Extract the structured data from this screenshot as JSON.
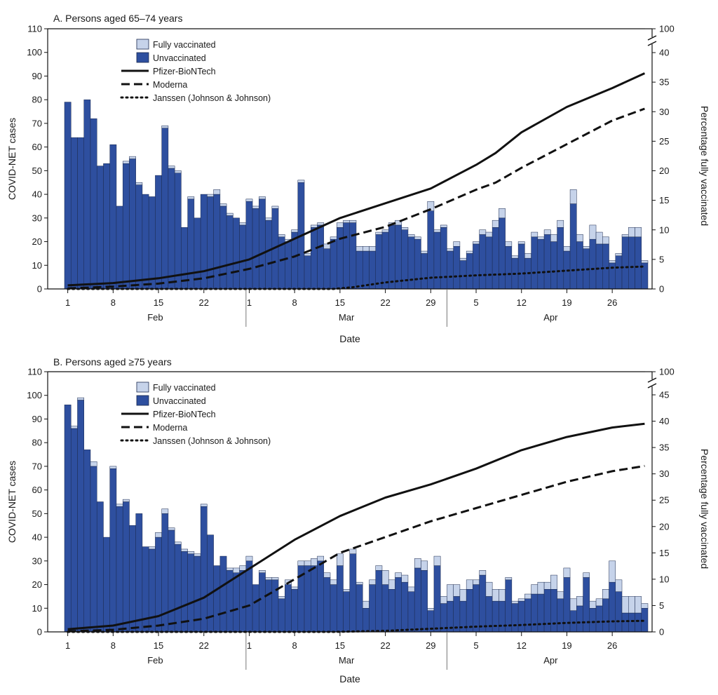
{
  "chart_data": [
    {
      "type": "bar",
      "panel_title": "A. Persons aged 65–74 years",
      "xlabel": "Date",
      "ylabel": "COVID-NET cases",
      "y2label": "Percentage fully vaccinated",
      "ylim": [
        0,
        110
      ],
      "yticks": [
        "0",
        "10",
        "20",
        "30",
        "40",
        "50",
        "60",
        "70",
        "80",
        "90",
        "100",
        "110"
      ],
      "y2ticks": [
        "0",
        "5",
        "10",
        "15",
        "20",
        "25",
        "30",
        "35",
        "40"
      ],
      "y2break_label": "100",
      "y2lim": [
        0,
        40
      ],
      "xticks": [
        {
          "day": 0,
          "label": "1"
        },
        {
          "day": 7,
          "label": "8"
        },
        {
          "day": 14,
          "label": "15"
        },
        {
          "day": 21,
          "label": "22"
        },
        {
          "day": 28,
          "label": "1"
        },
        {
          "day": 35,
          "label": "8"
        },
        {
          "day": 42,
          "label": "15"
        },
        {
          "day": 49,
          "label": "22"
        },
        {
          "day": 56,
          "label": "29"
        },
        {
          "day": 63,
          "label": "5"
        },
        {
          "day": 70,
          "label": "12"
        },
        {
          "day": 77,
          "label": "19"
        },
        {
          "day": 84,
          "label": "26"
        }
      ],
      "months": [
        {
          "label": "Feb",
          "center_day": 13.5
        },
        {
          "label": "Mar",
          "center_day": 43
        },
        {
          "label": "Apr",
          "center_day": 74.5
        }
      ],
      "month_dividers": [
        27.5,
        58.5
      ],
      "legend": {
        "fully_vaccinated": "Fully vaccinated",
        "unvaccinated": "Unvaccinated",
        "pfizer": "Pfizer-BioNTech",
        "moderna": "Moderna",
        "janssen": "Janssen (Johnson & Johnson)"
      },
      "colors": {
        "unvaccinated": "#2e4f9f",
        "fully_vaccinated": "#c6d3ea",
        "line": "#111111"
      },
      "unvaccinated": [
        79,
        64,
        64,
        80,
        72,
        52,
        53,
        61,
        35,
        53,
        55,
        44,
        40,
        39,
        48,
        68,
        51,
        49,
        26,
        38,
        30,
        40,
        39,
        40,
        35,
        31,
        30,
        27,
        37,
        34,
        38,
        29,
        34,
        22,
        20,
        24,
        45,
        14,
        26,
        27,
        17,
        21,
        26,
        28,
        28,
        16,
        16,
        16,
        23,
        24,
        27,
        27,
        25,
        22,
        21,
        15,
        33,
        24,
        26,
        16,
        18,
        12,
        15,
        19,
        23,
        22,
        26,
        30,
        18,
        13,
        19,
        13,
        22,
        21,
        23,
        20,
        26,
        16,
        36,
        20,
        17,
        21,
        19,
        19,
        11,
        14,
        22,
        22,
        22,
        11
      ],
      "fully_vaccinated": [
        0,
        0,
        0,
        0,
        0,
        0,
        0,
        0,
        0,
        1,
        1,
        1,
        0,
        0,
        0,
        1,
        1,
        1,
        0,
        1,
        0,
        0,
        1,
        2,
        1,
        1,
        0,
        1,
        1,
        1,
        1,
        1,
        1,
        1,
        1,
        1,
        1,
        1,
        1,
        1,
        2,
        1,
        2,
        1,
        1,
        2,
        2,
        2,
        1,
        1,
        1,
        2,
        1,
        1,
        1,
        1,
        4,
        1,
        1,
        1,
        2,
        1,
        1,
        1,
        2,
        2,
        3,
        4,
        2,
        1,
        1,
        2,
        2,
        1,
        2,
        3,
        3,
        2,
        6,
        3,
        1,
        6,
        5,
        3,
        1,
        1,
        1,
        4,
        4,
        1
      ],
      "pfizer_pct": [
        [
          0,
          0.6
        ],
        [
          7,
          1.0
        ],
        [
          14,
          1.8
        ],
        [
          21,
          3.0
        ],
        [
          28,
          5.0
        ],
        [
          35,
          8.5
        ],
        [
          42,
          12.0
        ],
        [
          49,
          14.5
        ],
        [
          56,
          17.0
        ],
        [
          63,
          21.0
        ],
        [
          66,
          23.0
        ],
        [
          70,
          26.5
        ],
        [
          77,
          30.8
        ],
        [
          84,
          34.0
        ],
        [
          89,
          36.5
        ]
      ],
      "moderna_pct": [
        [
          0,
          0.1
        ],
        [
          7,
          0.4
        ],
        [
          14,
          0.9
        ],
        [
          21,
          1.8
        ],
        [
          28,
          3.4
        ],
        [
          35,
          5.5
        ],
        [
          42,
          8.5
        ],
        [
          49,
          10.5
        ],
        [
          56,
          13.5
        ],
        [
          63,
          16.8
        ],
        [
          66,
          18.0
        ],
        [
          70,
          20.5
        ],
        [
          77,
          24.5
        ],
        [
          84,
          28.5
        ],
        [
          89,
          30.5
        ]
      ],
      "janssen_pct": [
        [
          0,
          0
        ],
        [
          41,
          0
        ],
        [
          44,
          0.3
        ],
        [
          49,
          1.1
        ],
        [
          56,
          1.9
        ],
        [
          63,
          2.3
        ],
        [
          70,
          2.6
        ],
        [
          77,
          3.1
        ],
        [
          84,
          3.6
        ],
        [
          89,
          3.8
        ]
      ]
    },
    {
      "type": "bar",
      "panel_title": "B. Persons aged ≥75 years",
      "xlabel": "Date",
      "ylabel": "COVID-NET cases",
      "y2label": "Percentage fully vaccinated",
      "ylim": [
        0,
        110
      ],
      "yticks": [
        "0",
        "10",
        "20",
        "30",
        "40",
        "50",
        "60",
        "70",
        "80",
        "90",
        "100",
        "110"
      ],
      "y2ticks": [
        "0",
        "5",
        "10",
        "15",
        "20",
        "25",
        "30",
        "35",
        "40",
        "45"
      ],
      "y2break_label": "100",
      "y2lim": [
        0,
        45
      ],
      "xticks": [
        {
          "day": 0,
          "label": "1"
        },
        {
          "day": 7,
          "label": "8"
        },
        {
          "day": 14,
          "label": "15"
        },
        {
          "day": 21,
          "label": "22"
        },
        {
          "day": 28,
          "label": "1"
        },
        {
          "day": 35,
          "label": "8"
        },
        {
          "day": 42,
          "label": "15"
        },
        {
          "day": 49,
          "label": "22"
        },
        {
          "day": 56,
          "label": "29"
        },
        {
          "day": 63,
          "label": "5"
        },
        {
          "day": 70,
          "label": "12"
        },
        {
          "day": 77,
          "label": "19"
        },
        {
          "day": 84,
          "label": "26"
        }
      ],
      "months": [
        {
          "label": "Feb",
          "center_day": 13.5
        },
        {
          "label": "Mar",
          "center_day": 43
        },
        {
          "label": "Apr",
          "center_day": 74.5
        }
      ],
      "month_dividers": [
        27.5,
        58.5
      ],
      "legend": {
        "fully_vaccinated": "Fully vaccinated",
        "unvaccinated": "Unvaccinated",
        "pfizer": "Pfizer-BioNTech",
        "moderna": "Moderna",
        "janssen": "Janssen (Johnson & Johnson)"
      },
      "colors": {
        "unvaccinated": "#2e4f9f",
        "fully_vaccinated": "#c6d3ea",
        "line": "#111111"
      },
      "unvaccinated": [
        96,
        86,
        98,
        77,
        70,
        55,
        40,
        69,
        53,
        55,
        45,
        50,
        36,
        35,
        40,
        50,
        43,
        37,
        34,
        33,
        32,
        53,
        41,
        28,
        32,
        26,
        25,
        26,
        30,
        20,
        25,
        22,
        22,
        14,
        20,
        18,
        28,
        28,
        28,
        30,
        23,
        20,
        28,
        17,
        33,
        20,
        10,
        20,
        26,
        20,
        18,
        23,
        21,
        17,
        27,
        26,
        9,
        28,
        12,
        13,
        15,
        13,
        18,
        20,
        24,
        15,
        13,
        13,
        22,
        12,
        13,
        14,
        16,
        16,
        18,
        18,
        14,
        23,
        9,
        11,
        23,
        10,
        11,
        14,
        21,
        17,
        8,
        8,
        8,
        10
      ],
      "fully_vaccinated": [
        0,
        1,
        1,
        0,
        2,
        0,
        0,
        1,
        1,
        1,
        0,
        0,
        0,
        1,
        2,
        2,
        1,
        1,
        1,
        1,
        1,
        1,
        0,
        0,
        0,
        1,
        2,
        2,
        2,
        0,
        1,
        1,
        1,
        1,
        2,
        1,
        2,
        2,
        3,
        2,
        2,
        2,
        5,
        1,
        2,
        1,
        3,
        2,
        2,
        6,
        4,
        2,
        3,
        2,
        4,
        4,
        1,
        4,
        3,
        7,
        5,
        5,
        4,
        2,
        2,
        6,
        5,
        5,
        1,
        1,
        1,
        2,
        4,
        5,
        3,
        6,
        3,
        4,
        5,
        4,
        2,
        3,
        3,
        4,
        9,
        5,
        7,
        7,
        7,
        2
      ],
      "pfizer_pct": [
        [
          0,
          0.5
        ],
        [
          7,
          1.2
        ],
        [
          14,
          3.0
        ],
        [
          21,
          6.5
        ],
        [
          28,
          12.0
        ],
        [
          35,
          17.5
        ],
        [
          42,
          22.0
        ],
        [
          49,
          25.5
        ],
        [
          56,
          28.0
        ],
        [
          63,
          31.0
        ],
        [
          70,
          34.5
        ],
        [
          77,
          37.0
        ],
        [
          84,
          38.8
        ],
        [
          89,
          39.5
        ]
      ],
      "moderna_pct": [
        [
          0,
          0.1
        ],
        [
          7,
          0.4
        ],
        [
          14,
          1.2
        ],
        [
          21,
          2.5
        ],
        [
          28,
          5.0
        ],
        [
          35,
          10.0
        ],
        [
          42,
          15.0
        ],
        [
          49,
          18.0
        ],
        [
          56,
          21.0
        ],
        [
          63,
          23.5
        ],
        [
          70,
          26.0
        ],
        [
          77,
          28.5
        ],
        [
          84,
          30.5
        ],
        [
          89,
          31.5
        ]
      ],
      "janssen_pct": [
        [
          0,
          0
        ],
        [
          41,
          0
        ],
        [
          49,
          0.2
        ],
        [
          56,
          0.6
        ],
        [
          63,
          1.0
        ],
        [
          70,
          1.3
        ],
        [
          77,
          1.7
        ],
        [
          84,
          2.0
        ],
        [
          89,
          2.1
        ]
      ]
    }
  ]
}
